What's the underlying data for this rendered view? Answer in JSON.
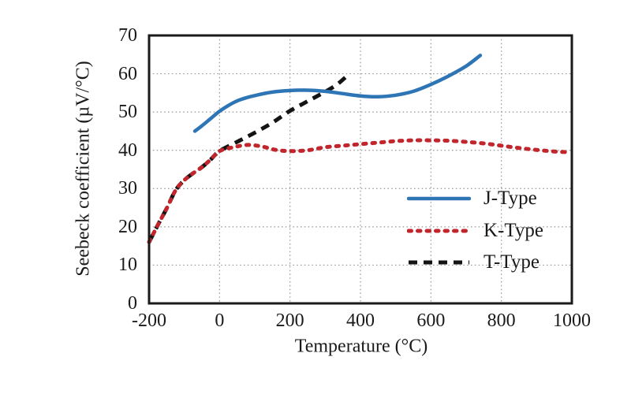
{
  "figure": {
    "background": "#ffffff",
    "text_color": "#1a1a1a"
  },
  "chart_data": {
    "type": "line",
    "title": "",
    "xlabel": "Temperature (°C)",
    "ylabel": "Seebeck coefficient (µV/°C)",
    "xlim": [
      -200,
      1000
    ],
    "ylim": [
      0,
      70
    ],
    "x_ticks": [
      "-200",
      "0",
      "200",
      "400",
      "600",
      "800",
      "1000"
    ],
    "x_tick_values": [
      -200,
      0,
      200,
      400,
      600,
      800,
      1000
    ],
    "y_ticks": [
      "0",
      "10",
      "20",
      "30",
      "40",
      "50",
      "60",
      "70"
    ],
    "y_tick_values": [
      0,
      10,
      20,
      30,
      40,
      50,
      60,
      70
    ],
    "grid": true,
    "grid_color": "#999999",
    "border_color": "#1a1a1a",
    "legend_position": "inside-right",
    "series": [
      {
        "name": "T-Type",
        "color": "#141414",
        "line_style": "dashed",
        "points": [
          [
            -200,
            16
          ],
          [
            -175,
            20.5
          ],
          [
            -150,
            24.8
          ],
          [
            -125,
            29.5
          ],
          [
            -100,
            32.2
          ],
          [
            -75,
            34.0
          ],
          [
            -50,
            35.6
          ],
          [
            -25,
            37.6
          ],
          [
            0,
            39.8
          ],
          [
            50,
            42.2
          ],
          [
            100,
            44.6
          ],
          [
            150,
            47.2
          ],
          [
            200,
            50.3
          ],
          [
            250,
            52.8
          ],
          [
            300,
            55.3
          ],
          [
            335,
            57.3
          ],
          [
            365,
            59.7
          ]
        ]
      },
      {
        "name": "K-Type",
        "color": "#c2262d",
        "line_style": "dotted",
        "points": [
          [
            -200,
            16
          ],
          [
            -175,
            20.5
          ],
          [
            -150,
            24.8
          ],
          [
            -125,
            29.5
          ],
          [
            -100,
            32.2
          ],
          [
            -75,
            34.0
          ],
          [
            -50,
            35.6
          ],
          [
            -25,
            37.6
          ],
          [
            0,
            39.8
          ],
          [
            40,
            40.8
          ],
          [
            80,
            41.4
          ],
          [
            120,
            41.0
          ],
          [
            160,
            40.1
          ],
          [
            200,
            39.8
          ],
          [
            250,
            40.0
          ],
          [
            300,
            40.8
          ],
          [
            350,
            41.2
          ],
          [
            400,
            41.6
          ],
          [
            450,
            42.0
          ],
          [
            500,
            42.4
          ],
          [
            550,
            42.6
          ],
          [
            600,
            42.6
          ],
          [
            650,
            42.5
          ],
          [
            700,
            42.2
          ],
          [
            750,
            41.8
          ],
          [
            800,
            41.2
          ],
          [
            850,
            40.6
          ],
          [
            900,
            40.1
          ],
          [
            950,
            39.7
          ],
          [
            990,
            39.5
          ]
        ]
      },
      {
        "name": "J-Type",
        "color": "#2e75b6",
        "line_style": "solid",
        "points": [
          [
            -70,
            45
          ],
          [
            -50,
            46.4
          ],
          [
            -25,
            48.3
          ],
          [
            0,
            50.2
          ],
          [
            25,
            51.7
          ],
          [
            50,
            52.9
          ],
          [
            75,
            53.7
          ],
          [
            100,
            54.3
          ],
          [
            150,
            55.2
          ],
          [
            200,
            55.6
          ],
          [
            250,
            55.7
          ],
          [
            300,
            55.4
          ],
          [
            350,
            54.8
          ],
          [
            400,
            54.2
          ],
          [
            450,
            54.0
          ],
          [
            500,
            54.4
          ],
          [
            550,
            55.4
          ],
          [
            600,
            57.2
          ],
          [
            650,
            59.4
          ],
          [
            700,
            62.0
          ],
          [
            740,
            64.8
          ]
        ]
      }
    ],
    "legend_order": [
      "J-Type",
      "K-Type",
      "T-Type"
    ]
  }
}
